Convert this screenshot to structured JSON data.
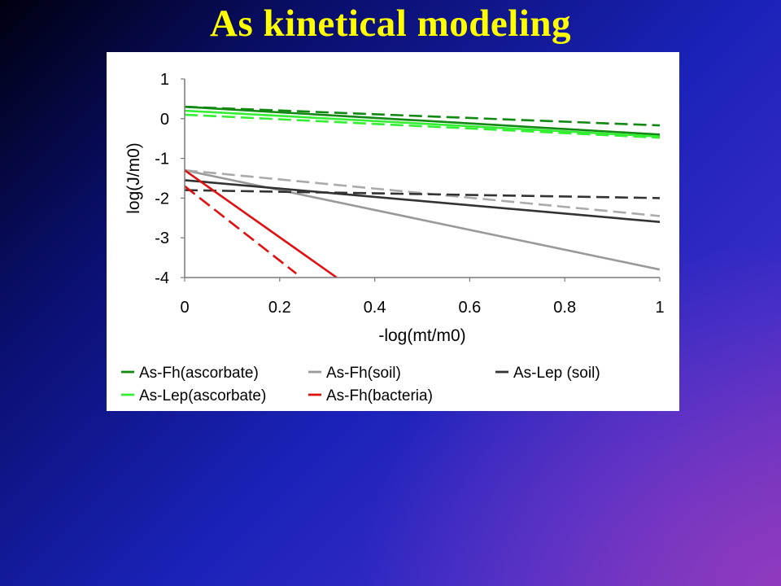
{
  "slide": {
    "title": "As kinetical modeling"
  },
  "chart_data": {
    "type": "line",
    "title": "",
    "xlabel": "-log(mt/m0)",
    "ylabel": "log(J/m0)",
    "xlim": [
      0,
      1
    ],
    "ylim": [
      -4,
      1
    ],
    "x_ticks": [
      "0",
      "0.2",
      "0.4",
      "0.6",
      "0.8",
      "1"
    ],
    "y_ticks": [
      "1",
      "0",
      "-1",
      "-2",
      "-3",
      "-4"
    ],
    "grid": false,
    "legend_position": "bottom",
    "series": [
      {
        "name": "As-Fh(ascorbate)",
        "color": "#118811",
        "dash": "solid",
        "x": [
          0,
          1
        ],
        "y": [
          0.3,
          -0.4
        ]
      },
      {
        "name": "",
        "color": "#118811",
        "dash": "dashed",
        "x": [
          0,
          1
        ],
        "y": [
          0.3,
          -0.17
        ]
      },
      {
        "name": "As-Fh(soil)",
        "color": "#999999",
        "dash": "solid",
        "x": [
          0,
          1
        ],
        "y": [
          -1.3,
          -3.8
        ]
      },
      {
        "name": "",
        "color": "#aaaaaa",
        "dash": "dashed",
        "x": [
          0,
          1
        ],
        "y": [
          -1.3,
          -2.45
        ]
      },
      {
        "name": "As-Lep (soil)",
        "color": "#333333",
        "dash": "solid",
        "x": [
          0,
          1
        ],
        "y": [
          -1.55,
          -2.6
        ]
      },
      {
        "name": "",
        "color": "#333333",
        "dash": "dashed",
        "x": [
          0,
          1
        ],
        "y": [
          -1.8,
          -2.0
        ]
      },
      {
        "name": "As-Lep(ascorbate)",
        "color": "#33ee33",
        "dash": "solid",
        "x": [
          0,
          1
        ],
        "y": [
          0.2,
          -0.45
        ]
      },
      {
        "name": "",
        "color": "#33ee33",
        "dash": "dashed",
        "x": [
          0,
          1
        ],
        "y": [
          0.1,
          -0.48
        ]
      },
      {
        "name": "As-Fh(bacteria)",
        "color": "#dd1111",
        "dash": "solid",
        "x": [
          0,
          0.32
        ],
        "y": [
          -1.3,
          -4.0
        ]
      },
      {
        "name": "",
        "color": "#dd1111",
        "dash": "dashed",
        "x": [
          0,
          0.235
        ],
        "y": [
          -1.7,
          -3.9
        ]
      }
    ],
    "legend": [
      {
        "label": "As-Fh(ascorbate)",
        "color": "#118811"
      },
      {
        "label": "As-Fh(soil)",
        "color": "#999999"
      },
      {
        "label": "As-Lep (soil)",
        "color": "#333333"
      },
      {
        "label": "As-Lep(ascorbate)",
        "color": "#33ee33"
      },
      {
        "label": "As-Fh(bacteria)",
        "color": "#dd1111"
      }
    ]
  }
}
